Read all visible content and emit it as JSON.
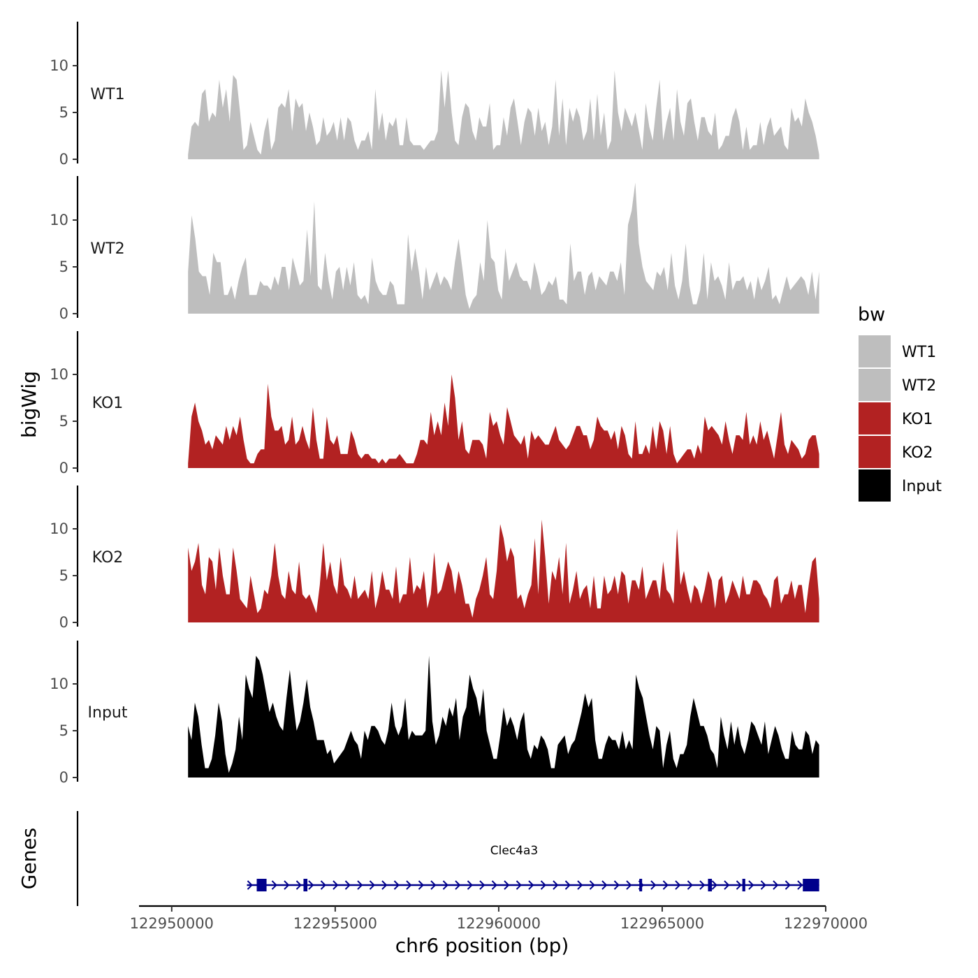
{
  "chart_data": {
    "type": "area",
    "ylabel": "bigWig",
    "xlabel": "chr6 position (bp)",
    "xlim": [
      122949000,
      122970000
    ],
    "x_range": [
      122950500,
      122969800
    ],
    "ylim": [
      0,
      15
    ],
    "y_ticks": [
      "0",
      "5",
      "10"
    ],
    "x_ticks": [
      {
        "value": 122950000,
        "label": "122950000"
      },
      {
        "value": 122955000,
        "label": "122955000"
      },
      {
        "value": 122960000,
        "label": "122960000"
      },
      {
        "value": 122965000,
        "label": "122965000"
      },
      {
        "value": 122970000,
        "label": "122970000"
      }
    ],
    "legend": {
      "title": "bw",
      "position": "right",
      "entries": [
        {
          "name": "WT1",
          "color": "#bebebe"
        },
        {
          "name": "WT2",
          "color": "#bebebe"
        },
        {
          "name": "KO1",
          "color": "#b22222"
        },
        {
          "name": "KO2",
          "color": "#b22222"
        },
        {
          "name": "Input",
          "color": "#000000"
        }
      ]
    },
    "series": [
      {
        "name": "WT1",
        "color": "#bebebe",
        "values": [
          0.5,
          3.5,
          4.0,
          3.5,
          7.0,
          7.5,
          4.0,
          5.0,
          4.5,
          8.5,
          5.5,
          7.5,
          4.0,
          9.0,
          8.5,
          5.0,
          1.0,
          1.5,
          4.0,
          2.5,
          1.0,
          0.5,
          3.0,
          4.5,
          1.0,
          2.0,
          5.5,
          6.0,
          5.5,
          7.5,
          3.0,
          6.5,
          5.5,
          6.0,
          3.0,
          5.0,
          3.5,
          1.5,
          2.0,
          4.5,
          2.5,
          3.0,
          4.0,
          2.0,
          4.5,
          2.0,
          4.5,
          4.0,
          2.0,
          1.0,
          2.0,
          2.0,
          3.0,
          1.0,
          7.5,
          3.0,
          5.0,
          2.0,
          4.0,
          3.5,
          4.5,
          1.5,
          1.5,
          4.5,
          2.0,
          1.5,
          1.5,
          1.5,
          1.0,
          1.5,
          2.0,
          2.0,
          3.0,
          9.5,
          5.5,
          9.5,
          5.0,
          2.0,
          1.5,
          4.5,
          6.0,
          5.5,
          3.0,
          2.0,
          4.5,
          3.5,
          3.5,
          6.0,
          1.0,
          1.5,
          1.5,
          4.5,
          2.5,
          5.5,
          6.5,
          4.0,
          1.5,
          4.0,
          5.5,
          5.0,
          2.5,
          5.5,
          3.0,
          4.0,
          1.5,
          3.5,
          8.5,
          2.5,
          6.5,
          1.5,
          5.5,
          4.0,
          5.5,
          4.5,
          2.0,
          3.0,
          6.5,
          2.0,
          7.0,
          2.5,
          5.0,
          1.0,
          2.0,
          9.5,
          5.0,
          3.0,
          5.5,
          4.5,
          3.5,
          5.0,
          3.0,
          1.0,
          6.0,
          3.5,
          2.0,
          5.5,
          8.5,
          2.0,
          4.0,
          5.5,
          2.0,
          7.5,
          4.0,
          2.5,
          6.0,
          6.5,
          4.0,
          2.0,
          4.5,
          4.5,
          3.0,
          2.5,
          5.0,
          1.0,
          1.5,
          2.5,
          2.5,
          4.5,
          5.5,
          4.0,
          1.0,
          3.5,
          1.0,
          1.5,
          1.5,
          4.0,
          1.5,
          3.5,
          4.5,
          2.5,
          3.0,
          3.5,
          1.5,
          1.0,
          5.5,
          4.0,
          4.5,
          3.5,
          6.5,
          5.0,
          4.0,
          2.5,
          0.5
        ]
      },
      {
        "name": "WT2",
        "color": "#bebebe",
        "values": [
          4.5,
          10.5,
          8.0,
          4.5,
          4.0,
          4.0,
          2.0,
          6.5,
          5.5,
          5.5,
          2.0,
          2.0,
          3.0,
          1.5,
          3.5,
          5.0,
          6.0,
          2.0,
          2.0,
          2.0,
          3.5,
          3.0,
          3.0,
          2.5,
          4.0,
          3.0,
          5.0,
          5.0,
          2.5,
          6.0,
          4.5,
          3.0,
          3.5,
          9.0,
          4.0,
          12.0,
          3.0,
          2.5,
          6.5,
          3.5,
          1.5,
          4.5,
          5.0,
          2.5,
          5.0,
          3.0,
          5.5,
          2.0,
          1.5,
          2.0,
          1.0,
          6.0,
          3.5,
          2.5,
          2.0,
          2.0,
          3.5,
          3.0,
          1.0,
          1.0,
          1.0,
          8.5,
          4.5,
          7.0,
          4.5,
          1.5,
          5.0,
          2.5,
          3.5,
          4.5,
          3.0,
          4.0,
          3.5,
          2.5,
          5.5,
          8.0,
          5.0,
          2.0,
          0.5,
          1.5,
          2.0,
          5.5,
          3.5,
          10.0,
          6.0,
          5.5,
          2.5,
          1.5,
          7.0,
          3.5,
          4.5,
          5.5,
          4.0,
          3.5,
          3.5,
          2.5,
          5.5,
          4.0,
          2.0,
          2.5,
          3.5,
          3.0,
          4.0,
          1.5,
          1.5,
          1.0,
          7.5,
          3.5,
          4.5,
          4.5,
          2.0,
          4.0,
          4.5,
          2.5,
          4.0,
          3.5,
          3.0,
          4.5,
          4.5,
          3.5,
          5.5,
          2.0,
          9.5,
          11.0,
          14.0,
          7.5,
          5.0,
          3.5,
          3.0,
          2.5,
          4.5,
          4.0,
          5.0,
          2.5,
          6.5,
          3.0,
          1.5,
          3.5,
          7.5,
          3.0,
          1.0,
          1.0,
          2.5,
          6.5,
          1.5,
          5.5,
          3.5,
          4.0,
          3.0,
          1.5,
          5.5,
          2.5,
          3.5,
          3.5,
          4.0,
          2.5,
          3.5,
          1.5,
          4.0,
          2.5,
          3.5,
          5.0,
          1.5,
          2.0,
          1.0,
          2.5,
          4.0,
          2.5,
          3.0,
          3.5,
          4.0,
          3.5,
          2.0,
          4.5,
          1.5,
          4.5
        ]
      },
      {
        "name": "KO1",
        "color": "#b22222",
        "values": [
          0.5,
          5.5,
          7.0,
          5.0,
          4.0,
          2.5,
          3.0,
          2.0,
          3.5,
          3.0,
          2.5,
          4.5,
          3.0,
          4.5,
          3.5,
          5.5,
          3.0,
          1.0,
          0.5,
          0.5,
          1.5,
          2.0,
          2.0,
          9.0,
          5.5,
          4.0,
          4.0,
          4.5,
          2.5,
          3.0,
          5.5,
          2.5,
          3.0,
          4.5,
          3.0,
          2.0,
          6.5,
          3.0,
          1.0,
          1.0,
          5.5,
          3.0,
          2.5,
          3.5,
          1.5,
          1.5,
          1.5,
          4.0,
          3.0,
          1.5,
          1.0,
          1.5,
          1.5,
          1.0,
          1.0,
          0.5,
          1.0,
          0.5,
          1.0,
          1.0,
          1.0,
          1.5,
          1.0,
          0.5,
          0.5,
          0.5,
          1.5,
          3.0,
          3.0,
          2.5,
          6.0,
          3.5,
          5.0,
          3.5,
          7.0,
          4.5,
          10.0,
          7.5,
          3.0,
          5.0,
          2.0,
          1.5,
          3.0,
          3.0,
          3.0,
          2.5,
          1.0,
          6.0,
          4.5,
          5.0,
          3.5,
          2.5,
          6.5,
          5.0,
          3.5,
          3.0,
          2.5,
          3.5,
          1.0,
          4.0,
          3.0,
          3.5,
          3.0,
          2.5,
          2.5,
          3.5,
          4.5,
          3.0,
          2.5,
          2.0,
          2.5,
          3.5,
          4.5,
          4.5,
          3.5,
          3.5,
          2.0,
          3.0,
          5.5,
          4.5,
          4.0,
          4.0,
          3.0,
          4.0,
          2.0,
          4.5,
          3.5,
          1.5,
          1.0,
          5.0,
          1.5,
          1.5,
          2.5,
          1.5,
          4.5,
          2.0,
          5.0,
          4.0,
          1.5,
          4.5,
          1.5,
          0.5,
          1.0,
          1.5,
          2.0,
          2.0,
          1.0,
          2.5,
          1.5,
          5.5,
          4.0,
          4.5,
          4.0,
          3.5,
          2.5,
          5.0,
          3.0,
          1.5,
          3.5,
          3.5,
          3.0,
          6.0,
          2.5,
          3.5,
          2.5,
          5.0,
          3.0,
          4.0,
          2.5,
          1.0,
          3.5,
          6.0,
          2.5,
          1.5,
          3.0,
          2.5,
          2.0,
          1.0,
          1.5,
          3.0,
          3.5,
          3.5,
          1.5
        ]
      },
      {
        "name": "KO2",
        "color": "#b22222",
        "values": [
          8.0,
          5.5,
          6.5,
          8.5,
          4.0,
          3.0,
          7.0,
          6.5,
          3.5,
          8.0,
          5.0,
          3.0,
          3.0,
          8.0,
          5.5,
          2.5,
          2.0,
          1.5,
          5.0,
          3.0,
          1.0,
          1.5,
          3.5,
          3.0,
          5.0,
          8.5,
          5.0,
          3.0,
          2.5,
          5.5,
          3.5,
          3.0,
          6.5,
          3.0,
          2.5,
          3.0,
          2.0,
          1.0,
          4.0,
          8.5,
          4.5,
          6.5,
          4.0,
          3.0,
          7.0,
          4.0,
          3.5,
          2.5,
          5.0,
          2.5,
          3.0,
          3.5,
          2.5,
          5.5,
          1.5,
          3.0,
          5.5,
          3.5,
          3.5,
          2.5,
          6.0,
          2.0,
          3.0,
          3.0,
          7.0,
          3.0,
          4.0,
          3.5,
          5.5,
          1.5,
          3.0,
          7.5,
          3.0,
          3.5,
          5.0,
          6.5,
          5.5,
          3.0,
          5.5,
          4.0,
          2.0,
          2.0,
          0.5,
          2.5,
          3.5,
          5.0,
          7.0,
          3.0,
          2.5,
          5.5,
          10.5,
          9.0,
          6.5,
          8.0,
          7.0,
          2.5,
          3.0,
          1.5,
          3.0,
          4.0,
          9.0,
          3.0,
          11.0,
          7.0,
          2.0,
          5.5,
          4.5,
          7.0,
          3.0,
          8.5,
          2.0,
          3.5,
          5.5,
          2.5,
          3.5,
          4.0,
          1.5,
          5.0,
          1.5,
          1.5,
          5.0,
          3.0,
          3.5,
          5.0,
          3.0,
          5.5,
          5.0,
          2.0,
          4.5,
          4.5,
          3.5,
          6.0,
          2.5,
          3.5,
          4.5,
          4.5,
          2.5,
          6.5,
          3.5,
          3.0,
          2.0,
          10.0,
          4.0,
          5.5,
          3.5,
          2.0,
          4.0,
          3.5,
          2.0,
          3.5,
          5.5,
          4.5,
          1.5,
          4.5,
          5.0,
          2.0,
          3.0,
          4.5,
          3.5,
          2.5,
          5.0,
          3.0,
          3.0,
          4.5,
          4.5,
          4.0,
          3.0,
          2.5,
          1.5,
          4.5,
          5.0,
          2.0,
          3.0,
          3.0,
          4.5,
          2.5,
          4.0,
          4.0,
          1.0,
          4.0,
          6.5,
          7.0,
          2.5
        ]
      },
      {
        "name": "Input",
        "color": "#000000",
        "values": [
          5.5,
          4.0,
          8.0,
          6.5,
          3.5,
          1.0,
          1.0,
          2.0,
          4.5,
          8.0,
          6.0,
          2.5,
          0.5,
          1.5,
          3.0,
          6.5,
          4.0,
          11.0,
          9.5,
          8.5,
          13.0,
          12.5,
          11.0,
          9.0,
          7.0,
          8.0,
          6.5,
          5.5,
          5.0,
          8.5,
          11.5,
          8.0,
          5.0,
          6.0,
          8.0,
          10.5,
          7.5,
          6.0,
          4.0,
          4.0,
          4.0,
          2.5,
          3.0,
          1.5,
          2.0,
          2.5,
          3.0,
          4.0,
          5.0,
          4.0,
          3.5,
          2.0,
          5.0,
          4.0,
          5.5,
          5.5,
          5.0,
          4.0,
          3.5,
          5.0,
          8.0,
          5.5,
          4.5,
          5.5,
          8.5,
          4.0,
          5.0,
          4.5,
          4.5,
          4.5,
          5.0,
          13.0,
          6.0,
          3.5,
          4.5,
          6.5,
          5.5,
          7.5,
          6.5,
          8.5,
          4.0,
          6.5,
          7.5,
          11.0,
          9.5,
          8.5,
          6.5,
          9.5,
          5.0,
          3.5,
          2.0,
          2.0,
          4.5,
          7.5,
          5.5,
          6.5,
          5.5,
          4.0,
          6.0,
          7.0,
          3.0,
          2.0,
          3.5,
          3.0,
          4.5,
          4.0,
          3.0,
          1.0,
          1.0,
          3.5,
          4.0,
          4.5,
          2.5,
          3.5,
          4.0,
          5.5,
          7.0,
          9.0,
          7.5,
          8.5,
          4.0,
          2.0,
          2.0,
          3.5,
          4.5,
          4.0,
          4.0,
          3.0,
          5.0,
          3.0,
          4.0,
          3.0,
          11.0,
          9.5,
          8.5,
          6.5,
          4.5,
          3.0,
          5.5,
          5.0,
          1.0,
          3.5,
          5.0,
          2.0,
          1.0,
          2.5,
          2.5,
          3.5,
          6.5,
          8.5,
          7.0,
          5.5,
          5.5,
          4.5,
          3.0,
          2.5,
          1.0,
          6.5,
          4.5,
          3.0,
          6.0,
          3.5,
          5.5,
          3.5,
          2.5,
          4.0,
          6.0,
          5.5,
          4.5,
          3.5,
          6.0,
          2.5,
          4.0,
          5.5,
          4.5,
          3.0,
          2.0,
          2.0,
          5.0,
          3.5,
          3.0,
          3.0,
          5.0,
          4.5,
          2.5,
          4.0,
          3.5
        ]
      }
    ],
    "gene_track": {
      "title": "Genes",
      "gene_name": "Clec4a3",
      "start": 122952300,
      "end": 122969800,
      "strand": "+",
      "exons": [
        {
          "start": 122952600,
          "end": 122952900
        },
        {
          "start": 122954030,
          "end": 122954150
        },
        {
          "start": 122964300,
          "end": 122964380
        },
        {
          "start": 122966400,
          "end": 122966520
        },
        {
          "start": 122967450,
          "end": 122967540
        },
        {
          "start": 122969300,
          "end": 122969800
        }
      ]
    }
  }
}
